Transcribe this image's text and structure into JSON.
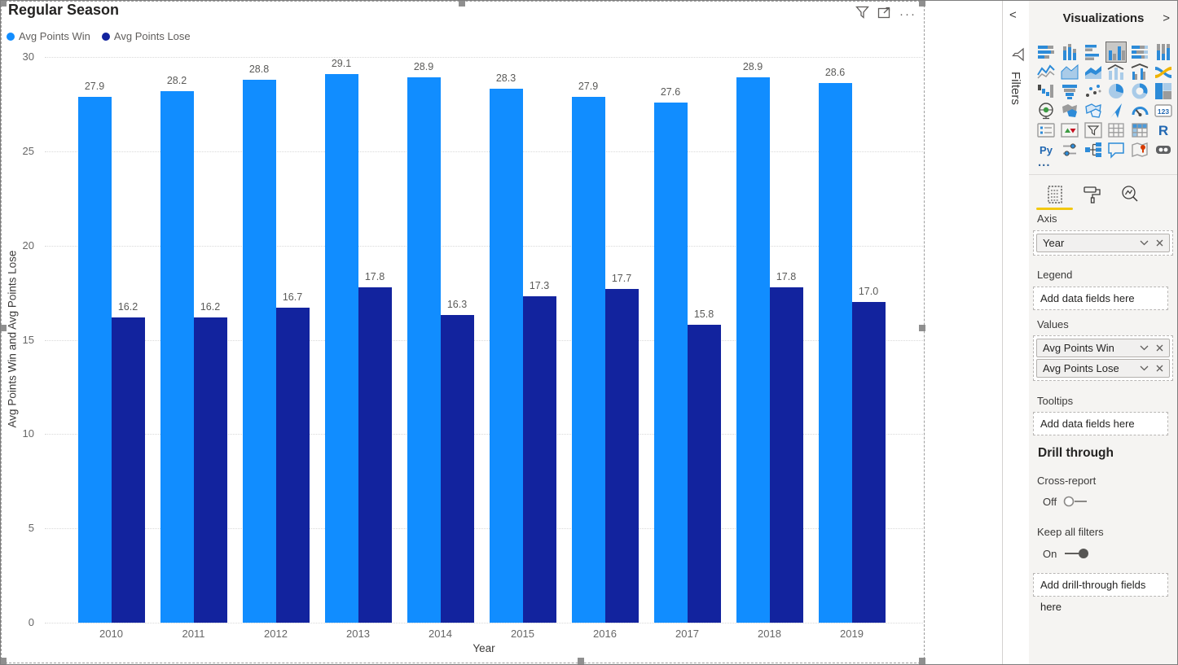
{
  "visual": {
    "title": "Regular Season",
    "more_label": "···"
  },
  "chart_data": {
    "type": "bar",
    "title": "Regular Season",
    "categories": [
      "2010",
      "2011",
      "2012",
      "2013",
      "2014",
      "2015",
      "2016",
      "2017",
      "2018",
      "2019"
    ],
    "series": [
      {
        "name": "Avg Points Win",
        "color": "#118DFF",
        "values": [
          27.9,
          28.2,
          28.8,
          29.1,
          28.9,
          28.3,
          27.9,
          27.6,
          28.9,
          28.6
        ]
      },
      {
        "name": "Avg Points Lose",
        "color": "#12239E",
        "values": [
          16.2,
          16.2,
          16.7,
          17.8,
          16.3,
          17.3,
          17.7,
          15.8,
          17.8,
          17.0
        ]
      }
    ],
    "xlabel": "Year",
    "ylabel": "Avg Points Win and Avg Points Lose",
    "ylim": [
      0,
      30
    ],
    "yticks": [
      0,
      5,
      10,
      15,
      20,
      25,
      30
    ],
    "grid": "horizontal-dotted",
    "legend_position": "top-left",
    "data_labels": true
  },
  "filters_pane": {
    "label": "Filters",
    "collapse_glyph": "<"
  },
  "viz_pane": {
    "title": "Visualizations",
    "expand_glyph": ">",
    "more_label": "...",
    "icons": [
      {
        "name": "stacked-bar-chart-icon",
        "type": "stacked-bar"
      },
      {
        "name": "stacked-column-chart-icon",
        "type": "stacked-column"
      },
      {
        "name": "clustered-bar-chart-icon",
        "type": "clustered-bar"
      },
      {
        "name": "clustered-column-chart-icon",
        "type": "clustered-column",
        "selected": true
      },
      {
        "name": "hundred-stacked-bar-chart-icon",
        "type": "pct-bar"
      },
      {
        "name": "hundred-stacked-column-chart-icon",
        "type": "pct-column"
      },
      {
        "name": "line-chart-icon",
        "type": "line"
      },
      {
        "name": "area-chart-icon",
        "type": "area"
      },
      {
        "name": "stacked-area-chart-icon",
        "type": "stacked-area"
      },
      {
        "name": "line-stacked-column-chart-icon",
        "type": "line-stacked-column"
      },
      {
        "name": "line-clustered-column-chart-icon",
        "type": "line-clustered-column"
      },
      {
        "name": "ribbon-chart-icon",
        "type": "ribbon"
      },
      {
        "name": "waterfall-chart-icon",
        "type": "waterfall"
      },
      {
        "name": "funnel-chart-icon",
        "type": "funnel"
      },
      {
        "name": "scatter-chart-icon",
        "type": "scatter"
      },
      {
        "name": "pie-chart-icon",
        "type": "pie"
      },
      {
        "name": "donut-chart-icon",
        "type": "donut"
      },
      {
        "name": "treemap-icon",
        "type": "treemap"
      },
      {
        "name": "map-icon",
        "type": "globe"
      },
      {
        "name": "filled-map-icon",
        "type": "filled-map"
      },
      {
        "name": "shape-map-icon",
        "type": "shape-map"
      },
      {
        "name": "azure-map-icon",
        "type": "azure-map"
      },
      {
        "name": "gauge-icon",
        "type": "gauge"
      },
      {
        "name": "card-icon",
        "type": "card",
        "text": "123"
      },
      {
        "name": "multi-row-card-icon",
        "type": "multirow"
      },
      {
        "name": "kpi-icon",
        "type": "kpi"
      },
      {
        "name": "slicer-icon",
        "type": "slicer"
      },
      {
        "name": "table-icon",
        "type": "table"
      },
      {
        "name": "matrix-icon",
        "type": "matrix"
      },
      {
        "name": "r-script-icon",
        "type": "rtext",
        "text": "R"
      },
      {
        "name": "python-visual-icon",
        "type": "pytext",
        "text": "Py"
      },
      {
        "name": "key-influencers-icon",
        "type": "influencers"
      },
      {
        "name": "decomposition-tree-icon",
        "type": "decomp"
      },
      {
        "name": "qa-icon",
        "type": "qa"
      },
      {
        "name": "arcgis-map-icon",
        "type": "arcgis"
      },
      {
        "name": "goggles-icon",
        "type": "goggles"
      }
    ],
    "sections": {
      "axis": {
        "label": "Axis",
        "fields": [
          "Year"
        ]
      },
      "legend": {
        "label": "Legend",
        "placeholder": "Add data fields here"
      },
      "values": {
        "label": "Values",
        "fields": [
          "Avg Points Win",
          "Avg Points Lose"
        ]
      },
      "tooltips": {
        "label": "Tooltips",
        "placeholder": "Add data fields here"
      }
    },
    "drill": {
      "heading": "Drill through",
      "cross_report_label": "Cross-report",
      "cross_report_state": "Off",
      "keep_filters_label": "Keep all filters",
      "keep_filters_state": "On",
      "placeholder": "Add drill-through fields here"
    },
    "accent_yellow": "#F2C811"
  }
}
